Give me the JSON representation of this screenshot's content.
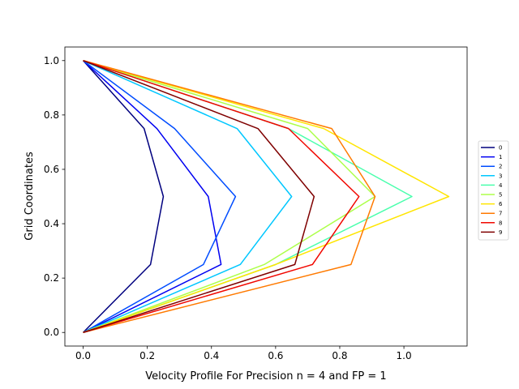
{
  "chart_data": {
    "type": "line",
    "title": "",
    "xlabel": "Velocity Profile For Precision n = 4 and FP = 1",
    "ylabel": "Grid Coordinates",
    "xlim": [
      -0.057,
      1.197
    ],
    "ylim": [
      -0.05,
      1.05
    ],
    "xticks": [
      0.0,
      0.2,
      0.4,
      0.6,
      0.8,
      1.0
    ],
    "xtick_labels": [
      "0.0",
      "0.2",
      "0.4",
      "0.6",
      "0.8",
      "1.0"
    ],
    "yticks": [
      0.0,
      0.2,
      0.4,
      0.6,
      0.8,
      1.0
    ],
    "ytick_labels": [
      "0.0",
      "0.2",
      "0.4",
      "0.6",
      "0.8",
      "1.0"
    ],
    "grid": false,
    "legend_position": "right, outside plot area",
    "y": [
      0.0,
      0.25,
      0.5,
      0.75,
      1.0
    ],
    "series": [
      {
        "name": "0",
        "color": "#00007f",
        "x": [
          0.0,
          0.21,
          0.25,
          0.19,
          0.0
        ]
      },
      {
        "name": "1",
        "color": "#0000f1",
        "x": [
          0.0,
          0.43,
          0.39,
          0.23,
          0.0
        ]
      },
      {
        "name": "2",
        "color": "#004cff",
        "x": [
          0.0,
          0.375,
          0.475,
          0.285,
          0.0
        ]
      },
      {
        "name": "3",
        "color": "#00c7ff",
        "x": [
          0.0,
          0.49,
          0.65,
          0.48,
          0.0
        ]
      },
      {
        "name": "4",
        "color": "#4affad",
        "x": [
          0.0,
          0.6,
          1.025,
          0.64,
          0.0
        ]
      },
      {
        "name": "5",
        "color": "#adff4a",
        "x": [
          0.0,
          0.565,
          0.91,
          0.7,
          0.0
        ]
      },
      {
        "name": "6",
        "color": "#ffe500",
        "x": [
          0.0,
          0.6,
          1.14,
          0.75,
          0.0
        ]
      },
      {
        "name": "7",
        "color": "#ff7a00",
        "x": [
          0.0,
          0.835,
          0.91,
          0.775,
          0.0
        ]
      },
      {
        "name": "8",
        "color": "#f10700",
        "x": [
          0.0,
          0.715,
          0.86,
          0.64,
          0.0
        ]
      },
      {
        "name": "9",
        "color": "#7f0000",
        "x": [
          0.0,
          0.66,
          0.72,
          0.545,
          0.0
        ]
      }
    ]
  }
}
